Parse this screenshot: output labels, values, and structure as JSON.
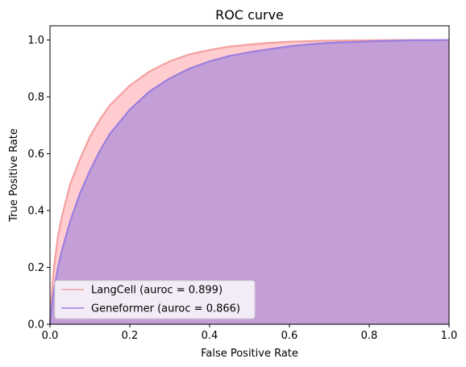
{
  "chart_data": {
    "type": "area",
    "title": "ROC curve",
    "xlabel": "False Positive Rate",
    "ylabel": "True Positive Rate",
    "xlim": [
      0.0,
      1.0
    ],
    "ylim": [
      0.0,
      1.05
    ],
    "xticks": [
      0.0,
      0.2,
      0.4,
      0.6,
      0.8,
      1.0
    ],
    "yticks": [
      0.0,
      0.2,
      0.4,
      0.6,
      0.8,
      1.0
    ],
    "xtick_labels": [
      "0.0",
      "0.2",
      "0.4",
      "0.6",
      "0.8",
      "1.0"
    ],
    "ytick_labels": [
      "0.0",
      "0.2",
      "0.4",
      "0.6",
      "0.8",
      "1.0"
    ],
    "grid": false,
    "legend_position": "lower-left",
    "series": [
      {
        "name": "LangCell (auroc = 0.899)",
        "color": "#f4a0a0",
        "fill_color": "#ffb0b5",
        "x": [
          0.0,
          0.005,
          0.01,
          0.02,
          0.03,
          0.05,
          0.075,
          0.1,
          0.125,
          0.15,
          0.2,
          0.25,
          0.3,
          0.35,
          0.4,
          0.45,
          0.5,
          0.55,
          0.6,
          0.65,
          0.7,
          0.8,
          0.9,
          1.0
        ],
        "y": [
          0.0,
          0.12,
          0.2,
          0.31,
          0.38,
          0.49,
          0.58,
          0.66,
          0.72,
          0.77,
          0.84,
          0.89,
          0.925,
          0.95,
          0.965,
          0.977,
          0.984,
          0.99,
          0.994,
          0.996,
          0.998,
          0.999,
          1.0,
          1.0
        ]
      },
      {
        "name": "Geneformer (auroc = 0.866)",
        "color": "#9b7fe0",
        "fill_color": "#b08fd8",
        "x": [
          0.0,
          0.005,
          0.01,
          0.02,
          0.03,
          0.05,
          0.075,
          0.1,
          0.125,
          0.15,
          0.2,
          0.25,
          0.3,
          0.35,
          0.4,
          0.45,
          0.5,
          0.55,
          0.6,
          0.65,
          0.7,
          0.8,
          0.9,
          1.0
        ],
        "y": [
          0.0,
          0.07,
          0.12,
          0.2,
          0.26,
          0.36,
          0.46,
          0.54,
          0.61,
          0.67,
          0.755,
          0.82,
          0.865,
          0.9,
          0.925,
          0.944,
          0.957,
          0.968,
          0.978,
          0.985,
          0.99,
          0.995,
          0.999,
          1.0
        ]
      }
    ]
  }
}
